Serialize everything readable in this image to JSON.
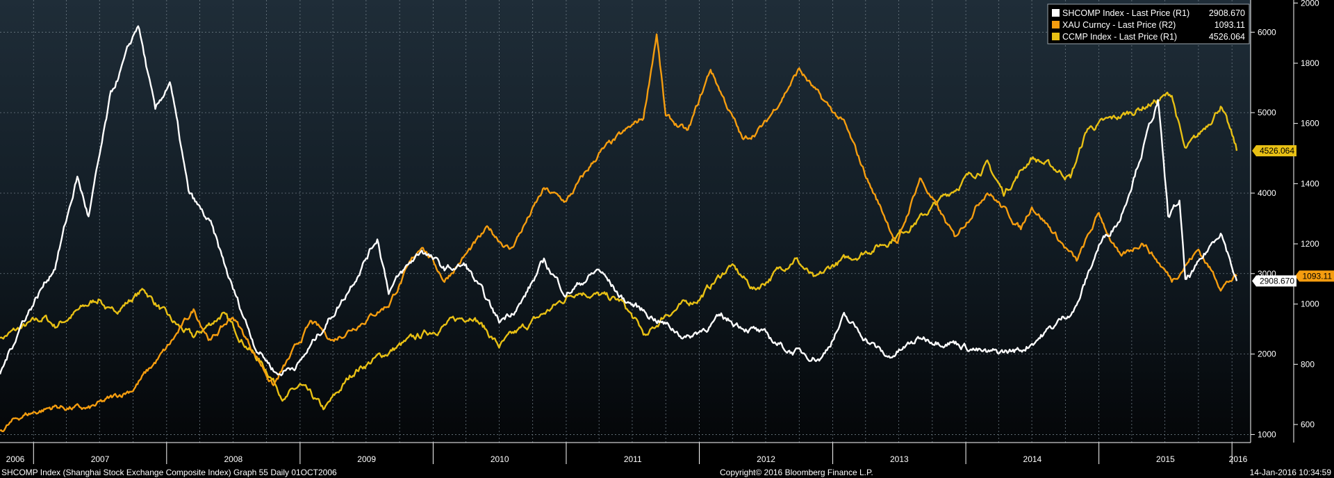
{
  "chart_data": {
    "type": "line",
    "x_range": [
      "2006-10-01",
      "2016-01-14"
    ],
    "year_labels": [
      "2006",
      "2007",
      "2008",
      "2009",
      "2010",
      "2011",
      "2012",
      "2013",
      "2014",
      "2015",
      "2016"
    ],
    "grid": true,
    "legend_position": "top-right",
    "right_axis_r1": {
      "ticks": [
        1000,
        2000,
        3000,
        4000,
        5000,
        6000
      ],
      "tick_labels": [
        "1000",
        "2000",
        "3000",
        "4000",
        "5000",
        "6000"
      ],
      "range": [
        900,
        6400
      ]
    },
    "right_axis_r2": {
      "ticks": [
        600,
        800,
        1000,
        1200,
        1400,
        1600,
        1800,
        2000
      ],
      "tick_labels": [
        "600",
        "800",
        "1000",
        "1200",
        "1400",
        "1600",
        "1800",
        "2000"
      ],
      "range": [
        540,
        2010
      ]
    },
    "series": [
      {
        "name": "SHCOMP Index - Last Price (R1)",
        "axis": "r1",
        "color": "#ffffff",
        "last": "2908.670",
        "points": [
          [
            "2006-10-01",
            1750
          ],
          [
            "2006-12-01",
            2400
          ],
          [
            "2007-03-01",
            3100
          ],
          [
            "2007-05-01",
            4200
          ],
          [
            "2007-06-01",
            3700
          ],
          [
            "2007-08-01",
            5200
          ],
          [
            "2007-10-15",
            6100
          ],
          [
            "2007-12-01",
            5000
          ],
          [
            "2008-01-10",
            5400
          ],
          [
            "2008-03-01",
            4000
          ],
          [
            "2008-05-01",
            3600
          ],
          [
            "2008-07-01",
            2800
          ],
          [
            "2008-09-01",
            2100
          ],
          [
            "2008-11-01",
            1750
          ],
          [
            "2009-01-01",
            1900
          ],
          [
            "2009-03-01",
            2300
          ],
          [
            "2009-05-01",
            2700
          ],
          [
            "2009-08-01",
            3450
          ],
          [
            "2009-09-01",
            2800
          ],
          [
            "2009-12-01",
            3300
          ],
          [
            "2010-02-01",
            3050
          ],
          [
            "2010-04-01",
            3100
          ],
          [
            "2010-07-01",
            2400
          ],
          [
            "2010-09-01",
            2650
          ],
          [
            "2010-11-01",
            3150
          ],
          [
            "2011-01-01",
            2750
          ],
          [
            "2011-04-01",
            3050
          ],
          [
            "2011-06-01",
            2700
          ],
          [
            "2011-09-01",
            2450
          ],
          [
            "2011-12-01",
            2200
          ],
          [
            "2012-03-01",
            2450
          ],
          [
            "2012-06-01",
            2300
          ],
          [
            "2012-09-01",
            2050
          ],
          [
            "2012-12-01",
            1950
          ],
          [
            "2013-02-01",
            2450
          ],
          [
            "2013-06-01",
            1950
          ],
          [
            "2013-09-01",
            2200
          ],
          [
            "2013-12-01",
            2150
          ],
          [
            "2014-03-01",
            2000
          ],
          [
            "2014-06-01",
            2050
          ],
          [
            "2014-09-01",
            2350
          ],
          [
            "2014-11-01",
            2600
          ],
          [
            "2015-01-01",
            3350
          ],
          [
            "2015-03-01",
            3700
          ],
          [
            "2015-06-12",
            5150
          ],
          [
            "2015-07-10",
            3700
          ],
          [
            "2015-08-10",
            3900
          ],
          [
            "2015-08-26",
            2900
          ],
          [
            "2015-10-01",
            3100
          ],
          [
            "2015-12-01",
            3550
          ],
          [
            "2016-01-14",
            2908.67
          ]
        ]
      },
      {
        "name": "XAU Curncy - Last Price (R2)",
        "axis": "r2",
        "color": "#f59d0f",
        "last": "1093.11",
        "points": [
          [
            "2006-10-01",
            580
          ],
          [
            "2006-12-01",
            630
          ],
          [
            "2007-03-01",
            660
          ],
          [
            "2007-06-01",
            650
          ],
          [
            "2007-10-01",
            720
          ],
          [
            "2008-01-01",
            850
          ],
          [
            "2008-03-15",
            980
          ],
          [
            "2008-05-01",
            880
          ],
          [
            "2008-07-01",
            960
          ],
          [
            "2008-10-20",
            730
          ],
          [
            "2009-02-01",
            940
          ],
          [
            "2009-04-01",
            880
          ],
          [
            "2009-09-01",
            1000
          ],
          [
            "2009-12-01",
            1200
          ],
          [
            "2010-02-01",
            1080
          ],
          [
            "2010-06-01",
            1250
          ],
          [
            "2010-08-01",
            1180
          ],
          [
            "2010-11-01",
            1380
          ],
          [
            "2011-01-01",
            1340
          ],
          [
            "2011-04-01",
            1500
          ],
          [
            "2011-08-01",
            1620
          ],
          [
            "2011-09-06",
            1900
          ],
          [
            "2011-10-01",
            1620
          ],
          [
            "2011-12-01",
            1570
          ],
          [
            "2012-02-01",
            1780
          ],
          [
            "2012-05-01",
            1540
          ],
          [
            "2012-07-01",
            1600
          ],
          [
            "2012-10-01",
            1780
          ],
          [
            "2012-12-01",
            1680
          ],
          [
            "2013-02-01",
            1600
          ],
          [
            "2013-04-15",
            1390
          ],
          [
            "2013-06-28",
            1200
          ],
          [
            "2013-08-28",
            1420
          ],
          [
            "2013-12-01",
            1220
          ],
          [
            "2014-03-01",
            1380
          ],
          [
            "2014-06-01",
            1250
          ],
          [
            "2014-07-01",
            1330
          ],
          [
            "2014-11-01",
            1140
          ],
          [
            "2015-01-01",
            1300
          ],
          [
            "2015-03-01",
            1150
          ],
          [
            "2015-05-01",
            1210
          ],
          [
            "2015-07-20",
            1080
          ],
          [
            "2015-10-01",
            1180
          ],
          [
            "2015-12-01",
            1060
          ],
          [
            "2016-01-14",
            1093.11
          ]
        ]
      },
      {
        "name": "CCMP Index - Last Price (R1)",
        "axis": "r1",
        "color": "#e8c014",
        "last": "4526.064",
        "points": [
          [
            "2006-10-01",
            2200
          ],
          [
            "2007-02-01",
            2450
          ],
          [
            "2007-03-01",
            2350
          ],
          [
            "2007-07-01",
            2700
          ],
          [
            "2007-08-01",
            2500
          ],
          [
            "2007-11-01",
            2800
          ],
          [
            "2008-01-15",
            2400
          ],
          [
            "2008-03-15",
            2200
          ],
          [
            "2008-06-01",
            2500
          ],
          [
            "2008-07-15",
            2250
          ],
          [
            "2008-10-10",
            1750
          ],
          [
            "2008-11-20",
            1450
          ],
          [
            "2009-01-01",
            1600
          ],
          [
            "2009-03-09",
            1300
          ],
          [
            "2009-06-01",
            1800
          ],
          [
            "2009-10-01",
            2100
          ],
          [
            "2010-01-01",
            2300
          ],
          [
            "2010-04-20",
            2500
          ],
          [
            "2010-07-01",
            2100
          ],
          [
            "2010-11-01",
            2500
          ],
          [
            "2011-02-01",
            2800
          ],
          [
            "2011-06-01",
            2650
          ],
          [
            "2011-08-10",
            2200
          ],
          [
            "2011-10-01",
            2500
          ],
          [
            "2012-01-01",
            2700
          ],
          [
            "2012-03-26",
            3100
          ],
          [
            "2012-06-01",
            2800
          ],
          [
            "2012-09-19",
            3200
          ],
          [
            "2012-11-15",
            2900
          ],
          [
            "2013-01-01",
            3100
          ],
          [
            "2013-06-01",
            3400
          ],
          [
            "2013-09-01",
            3700
          ],
          [
            "2013-12-31",
            4180
          ],
          [
            "2014-03-01",
            4350
          ],
          [
            "2014-04-15",
            4000
          ],
          [
            "2014-07-01",
            4450
          ],
          [
            "2014-10-15",
            4200
          ],
          [
            "2014-12-01",
            4800
          ],
          [
            "2015-03-01",
            4950
          ],
          [
            "2015-07-20",
            5230
          ],
          [
            "2015-08-25",
            4520
          ],
          [
            "2015-10-01",
            4700
          ],
          [
            "2015-12-01",
            5100
          ],
          [
            "2016-01-14",
            4526.064
          ]
        ]
      }
    ]
  },
  "legend": [
    {
      "label": "SHCOMP Index - Last Price (R1)",
      "value": "2908.670",
      "color": "#ffffff"
    },
    {
      "label": "XAU Curncy - Last Price (R2)",
      "value": "1093.11",
      "color": "#f59d0f"
    },
    {
      "label": "CCMP Index - Last Price (R1)",
      "value": "4526.064",
      "color": "#e8c014"
    }
  ],
  "footer": {
    "left": "SHCOMP Index (Shanghai Stock Exchange Composite Index) Graph 55  Daily 01OCT2006",
    "center": "Copyright© 2016 Bloomberg Finance L.P.",
    "right": "14-Jan-2016 10:34:59"
  }
}
